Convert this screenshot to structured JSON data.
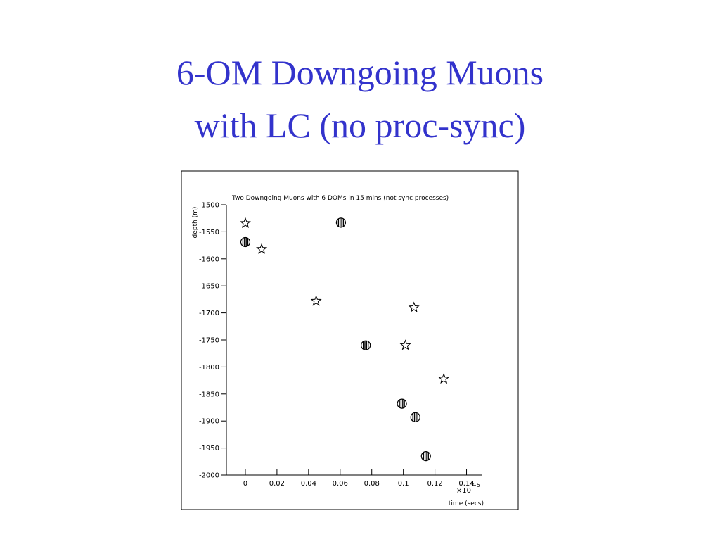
{
  "slide": {
    "title_lines": [
      "6-OM Downgoing Muons",
      "with LC (no proc-sync)"
    ]
  },
  "chart_data": {
    "type": "scatter",
    "title": "Two Downgoing Muons with 6 DOMs in 15 mins (not sync processes)",
    "x_label": "time (secs)",
    "y_label": "depth (m)",
    "x_scale_base": "×10",
    "x_scale_exponent": "−5",
    "xlim": [
      -0.012,
      0.15
    ],
    "ylim": [
      -2000,
      -1500
    ],
    "xticks": [
      0,
      0.02,
      0.04,
      0.06,
      0.08,
      0.1,
      0.12,
      0.14
    ],
    "yticks": [
      -1500,
      -1550,
      -1600,
      -1650,
      -1700,
      -1750,
      -1800,
      -1850,
      -1900,
      -1950,
      -2000
    ],
    "grid": false,
    "series": [
      {
        "marker": "star",
        "color": "#000000",
        "x": [
          0,
          0.0103,
          0.0448,
          0.1067,
          0.1013,
          0.1256
        ],
        "values": [
          -1534,
          -1582,
          -1678,
          -1690,
          -1760,
          -1822
        ]
      },
      {
        "marker": "striped-circle",
        "color": "#000000",
        "x": [
          0,
          0.0605,
          0.0762,
          0.0991,
          0.1076,
          0.1143
        ],
        "values": [
          -1569,
          -1533,
          -1760,
          -1868,
          -1893,
          -1965
        ]
      }
    ]
  }
}
